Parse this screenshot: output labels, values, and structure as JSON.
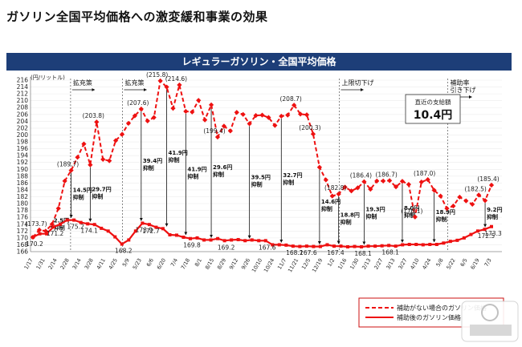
{
  "headline": "ガソリン全国平均価格への激変緩和事業の効果",
  "chart_data": {
    "type": "line",
    "title": "レギュラーガソリン・全国平均価格",
    "ylabel": "(円/リットル)",
    "ylim": [
      166,
      216
    ],
    "yticks": [
      166,
      168,
      170,
      172,
      174,
      176,
      178,
      180,
      182,
      184,
      186,
      188,
      190,
      192,
      194,
      196,
      198,
      200,
      202,
      204,
      206,
      208,
      210,
      212,
      214,
      216
    ],
    "x_ticks": [
      "1/17",
      "1/31",
      "2/14",
      "2/28",
      "3/14",
      "3/28",
      "4/11",
      "4/25",
      "5/9",
      "5/23",
      "6/6",
      "6/20",
      "7/4",
      "7/18",
      "8/1",
      "8/15",
      "8/29",
      "9/12",
      "9/26",
      "10/10",
      "10/24",
      "11/7",
      "11/21",
      "12/5",
      "12/19",
      "1/2",
      "1/16",
      "1/30",
      "2/13",
      "2/27",
      "3/13",
      "3/27",
      "4/10",
      "4/24",
      "5/8",
      "5/22",
      "6/5",
      "6/19",
      "7/3"
    ],
    "series": [
      {
        "name": "補助がない場合のガソリン価格",
        "style": "dashed",
        "color": "#ee1111",
        "values": [
          170.2,
          172.3,
          172.0,
          174.0,
          178.6,
          186.6,
          189.7,
          193.5,
          197.4,
          191.3,
          203.8,
          192.9,
          192.5,
          198.4,
          200.2,
          203.4,
          205.6,
          207.6,
          204.1,
          205.1,
          215.8,
          214.0,
          207.8,
          214.6,
          206.9,
          206.7,
          210.1,
          204.4,
          208.8,
          199.4,
          202.6,
          201.2,
          206.6,
          206.0,
          203.3,
          205.7,
          205.8,
          205.1,
          202.8,
          205.5,
          205.8,
          208.7,
          206.1,
          205.9,
          200.3,
          190.6,
          186.9,
          182.2,
          182.8,
          184.8,
          183.7,
          184.6,
          186.4,
          184.2,
          186.6,
          186.6,
          186.7,
          184.9,
          186.5,
          185.6,
          176.1,
          186.3,
          187.0,
          183.9,
          182.2,
          178.6,
          179.3,
          181.9,
          180.8,
          179.8,
          182.5,
          180.9,
          185.4
        ]
      },
      {
        "name": "補助後のガソリン価格",
        "style": "solid",
        "color": "#ee1111",
        "values": [
          170.2,
          171.2,
          171.2,
          173.2,
          174.0,
          175.2,
          175.2,
          174.5,
          174.1,
          173.9,
          172.8,
          172.0,
          170.3,
          168.2,
          169.4,
          172.0,
          174.3,
          173.9,
          173.1,
          172.7,
          170.9,
          170.8,
          170.2,
          169.8,
          170.0,
          169.4,
          169.4,
          169.8,
          169.2,
          169.4,
          169.5,
          169.2,
          169.4,
          169.2,
          169.2,
          168.0,
          168.0,
          167.9,
          167.6,
          167.5,
          167.6,
          167.5,
          167.5,
          168.0,
          167.6,
          167.6,
          167.4,
          167.5,
          167.4,
          167.6,
          167.6,
          167.7,
          167.8,
          167.6,
          168.0,
          168.1,
          168.1,
          168.0,
          168.1,
          168.1,
          168.5,
          169.0,
          169.3,
          170.0,
          171.0,
          172.0,
          172.5,
          173.3
        ]
      }
    ],
    "peak_labels": [
      "(173.7)",
      "(189.7)",
      "(203.8)",
      "(207.6)",
      "(215.8)",
      "(214.6)",
      "(199.4)",
      "(208.7)",
      "(200.3)",
      "(182.8)",
      "(186.4)",
      "(186.7)",
      "(176.1)",
      "(187.0)",
      "(182.5)",
      "(185.4)"
    ],
    "low_labels": [
      "170.2",
      "171.2",
      "175.2",
      "174.1",
      "168.2",
      "173.9",
      "172.7",
      "169.8",
      "169.2",
      "167.6",
      "168.2",
      "167.6",
      "167.4",
      "168.1",
      "168.1",
      "172.5",
      "173.3"
    ],
    "effect_labels": [
      "2.5円\n抑制",
      "14.5円\n抑制",
      "29.7円\n抑制",
      "39.4円\n抑制",
      "41.9円\n抑制",
      "41.9円\n抑制",
      "29.6円\n抑制",
      "39.5円\n抑制",
      "32.7円\n抑制",
      "14.6円\n抑制",
      "18.8円\n抑制",
      "19.3円\n抑制",
      "8.0円\n抑制",
      "18.9円\n抑制",
      "9.2円\n抑制"
    ],
    "phase_labels": [
      "拡充策",
      "拡充策",
      "上限切下げ",
      "補助率\n引き下げ"
    ],
    "callout": {
      "label": "直近の支給額",
      "value": "10.4円"
    },
    "legend_position": "bottom-right"
  }
}
